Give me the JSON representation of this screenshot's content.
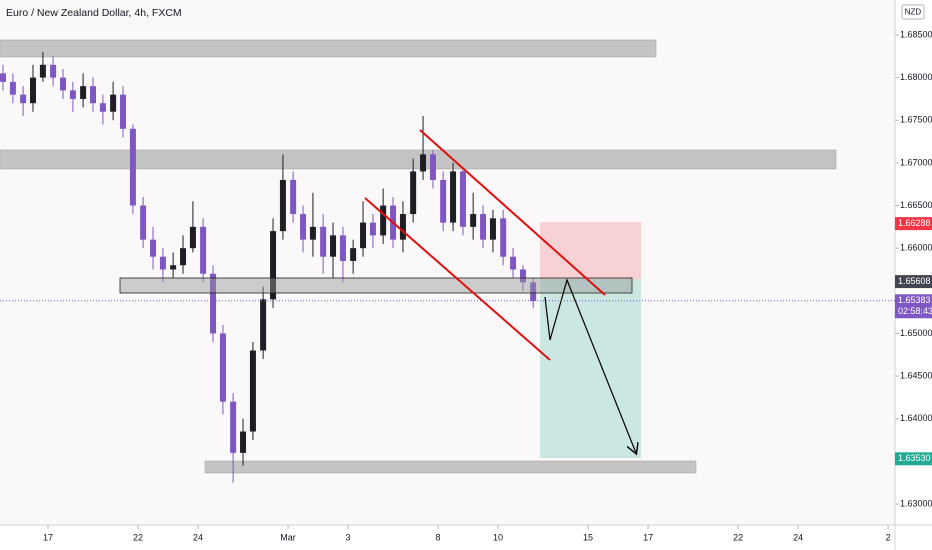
{
  "chart_data": {
    "type": "candlestick",
    "title": "Euro / New Zealand Dollar, 4h, FXCM",
    "currency": "NZD",
    "up_color": "#1e1e24",
    "down_color": "#7e57c2",
    "x": [
      -1.5,
      -1.17,
      -0.83,
      -0.5,
      -0.17,
      0.17,
      0.5,
      0.83,
      1.17,
      1.5,
      1.83,
      2.17,
      2.5,
      2.83,
      3.17,
      3.5,
      3.83,
      4.17,
      4.5,
      4.83,
      5.17,
      5.5,
      5.83,
      6.17,
      6.5,
      6.83,
      7.17,
      7.5,
      7.83,
      8.17,
      8.5,
      8.83,
      9.17,
      9.5,
      9.83,
      10.17,
      10.5,
      10.83,
      11.17,
      11.5,
      11.83,
      12.17,
      12.5,
      12.83,
      13.17,
      13.5,
      13.83,
      14.17,
      14.5,
      14.83,
      15.17,
      15.5,
      15.83,
      16.17
    ],
    "open": [
      1.6805,
      1.6795,
      1.678,
      1.677,
      1.68,
      1.6815,
      1.68,
      1.6785,
      1.6775,
      1.679,
      1.677,
      1.676,
      1.678,
      1.674,
      1.665,
      1.661,
      1.659,
      1.6575,
      1.658,
      1.66,
      1.6625,
      1.657,
      1.65,
      1.642,
      1.636,
      1.6385,
      1.648,
      1.654,
      1.662,
      1.668,
      1.664,
      1.661,
      1.6625,
      1.659,
      1.6615,
      1.6585,
      1.66,
      1.663,
      1.6615,
      1.665,
      1.661,
      1.664,
      1.669,
      1.671,
      1.668,
      1.663,
      1.669,
      1.6625,
      1.664,
      1.661,
      1.6635,
      1.659,
      1.6575,
      1.656
    ],
    "high": [
      1.6815,
      1.6805,
      1.679,
      1.6815,
      1.683,
      1.6825,
      1.681,
      1.6795,
      1.6805,
      1.68,
      1.678,
      1.6795,
      1.679,
      1.6745,
      1.666,
      1.6625,
      1.66,
      1.6595,
      1.6615,
      1.6655,
      1.6635,
      1.658,
      1.651,
      1.643,
      1.64,
      1.649,
      1.6555,
      1.6635,
      1.671,
      1.669,
      1.665,
      1.6665,
      1.664,
      1.663,
      1.6625,
      1.661,
      1.6655,
      1.664,
      1.667,
      1.666,
      1.6655,
      1.6705,
      1.6755,
      1.6715,
      1.669,
      1.67,
      1.6695,
      1.6665,
      1.665,
      1.6645,
      1.6645,
      1.66,
      1.658,
      1.6565
    ],
    "low": [
      1.6785,
      1.677,
      1.6755,
      1.676,
      1.6795,
      1.679,
      1.6775,
      1.676,
      1.6765,
      1.676,
      1.6745,
      1.675,
      1.673,
      1.664,
      1.66,
      1.6575,
      1.656,
      1.6565,
      1.657,
      1.6595,
      1.656,
      1.649,
      1.6405,
      1.6325,
      1.6345,
      1.6375,
      1.647,
      1.653,
      1.661,
      1.663,
      1.6595,
      1.659,
      1.657,
      1.6565,
      1.656,
      1.657,
      1.659,
      1.66,
      1.6605,
      1.66,
      1.6595,
      1.663,
      1.668,
      1.667,
      1.662,
      1.662,
      1.6615,
      1.661,
      1.66,
      1.6595,
      1.658,
      1.6565,
      1.655,
      1.653
    ],
    "close": [
      1.6795,
      1.678,
      1.677,
      1.68,
      1.6815,
      1.68,
      1.6785,
      1.6775,
      1.679,
      1.677,
      1.676,
      1.678,
      1.674,
      1.665,
      1.661,
      1.659,
      1.6575,
      1.658,
      1.66,
      1.6625,
      1.657,
      1.65,
      1.642,
      1.636,
      1.6385,
      1.648,
      1.654,
      1.662,
      1.668,
      1.664,
      1.661,
      1.6625,
      1.659,
      1.6615,
      1.6585,
      1.66,
      1.663,
      1.6615,
      1.665,
      1.661,
      1.664,
      1.669,
      1.671,
      1.668,
      1.663,
      1.669,
      1.6625,
      1.664,
      1.661,
      1.6635,
      1.659,
      1.6575,
      1.656,
      1.6538
    ],
    "xlim": [
      -1.6,
      28.23
    ],
    "xticks": [
      {
        "value": 0,
        "label": "17"
      },
      {
        "value": 3,
        "label": "22"
      },
      {
        "value": 5,
        "label": "24"
      },
      {
        "value": 8,
        "label": "Mar"
      },
      {
        "value": 10,
        "label": "3"
      },
      {
        "value": 13,
        "label": "8"
      },
      {
        "value": 15,
        "label": "10"
      },
      {
        "value": 18,
        "label": "15"
      },
      {
        "value": 20,
        "label": "17"
      },
      {
        "value": 23,
        "label": "22"
      },
      {
        "value": 25,
        "label": "24"
      },
      {
        "value": 28,
        "label": "2"
      }
    ],
    "ylim": [
      1.62754,
      1.6891
    ],
    "yticks": [
      {
        "value": 1.685,
        "label": "1.68500"
      },
      {
        "value": 1.68,
        "label": "1.68000"
      },
      {
        "value": 1.675,
        "label": "1.67500"
      },
      {
        "value": 1.67,
        "label": "1.67000"
      },
      {
        "value": 1.665,
        "label": "1.66500"
      },
      {
        "value": 1.66,
        "label": "1.66000"
      },
      {
        "value": 1.65,
        "label": "1.65000"
      },
      {
        "value": 1.645,
        "label": "1.64500"
      },
      {
        "value": 1.64,
        "label": "1.64000"
      },
      {
        "value": 1.63,
        "label": "1.63000"
      }
    ],
    "price_labels": [
      {
        "value": 1.66288,
        "label": "1.66288",
        "color": "#f23645"
      },
      {
        "value": 1.65608,
        "label": "1.65608",
        "color": "#434651"
      },
      {
        "value": 1.65383,
        "label": "1.65383",
        "time": "02:58:43",
        "color": "#7e57c2"
      },
      {
        "value": 1.6353,
        "label": "1.63530",
        "color": "#22ab94"
      }
    ]
  }
}
